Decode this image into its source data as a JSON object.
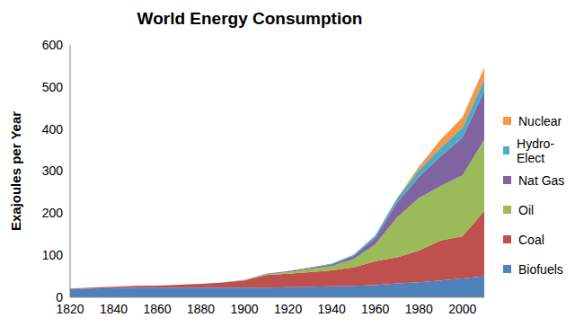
{
  "chart_data": {
    "type": "area",
    "title": "World Energy Consumption",
    "y_label": "Exajoules per Year",
    "stacked": true,
    "grid": false,
    "legend": "right",
    "x": [
      1820,
      1830,
      1840,
      1850,
      1860,
      1870,
      1880,
      1890,
      1900,
      1910,
      1920,
      1930,
      1940,
      1950,
      1960,
      1970,
      1980,
      1990,
      2000,
      2010
    ],
    "xlim": [
      1820,
      2010
    ],
    "xticks": [
      1820,
      1840,
      1860,
      1880,
      1900,
      1920,
      1940,
      1960,
      1980,
      2000
    ],
    "ylim": [
      0,
      600
    ],
    "yticks": [
      0,
      100,
      200,
      300,
      400,
      500,
      600
    ],
    "series": [
      {
        "name": "Biofuels",
        "color": "#4f81bd",
        "values": [
          20,
          21,
          22,
          23,
          23,
          23,
          23,
          23,
          23,
          23,
          24,
          25,
          26,
          27,
          29,
          33,
          36,
          40,
          45,
          50
        ]
      },
      {
        "name": "Coal",
        "color": "#c0504d",
        "values": [
          1,
          2,
          3,
          4,
          5,
          7,
          9,
          12,
          17,
          30,
          32,
          35,
          38,
          44,
          57,
          62,
          75,
          95,
          100,
          155
        ]
      },
      {
        "name": "Oil",
        "color": "#9bbb59",
        "values": [
          0,
          0,
          0,
          0,
          0,
          0,
          0,
          0,
          1,
          2,
          4,
          7,
          10,
          20,
          40,
          95,
          125,
          130,
          145,
          170
        ]
      },
      {
        "name": "Nat Gas",
        "color": "#8064a2",
        "values": [
          0,
          0,
          0,
          0,
          0,
          0,
          0,
          0,
          0.5,
          1,
          2,
          3,
          4,
          7,
          15,
          35,
          50,
          70,
          90,
          115
        ]
      },
      {
        "name": "Hydro-Elect",
        "color": "#4bacc6",
        "values": [
          0,
          0,
          0,
          0,
          0,
          0,
          0,
          0,
          0,
          0,
          0.5,
          1,
          2,
          3,
          6,
          10,
          16,
          20,
          23,
          28
        ]
      },
      {
        "name": "Nuclear",
        "color": "#f79646",
        "values": [
          0,
          0,
          0,
          0,
          0,
          0,
          0,
          0,
          0,
          0,
          0,
          0,
          0,
          0,
          0,
          1,
          8,
          20,
          25,
          28
        ]
      }
    ]
  }
}
